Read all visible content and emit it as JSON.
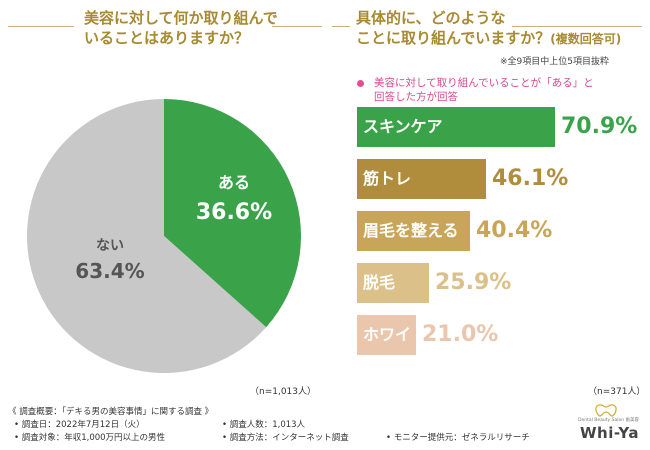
{
  "left": {
    "title_line1": "美容に対して何か取り組んで",
    "title_line2": "いることはありますか？",
    "n_label": "（n=1,013人）"
  },
  "right": {
    "title_line1": "具体的に、どのような",
    "title_line2_main": "ことに取り組んでいますか？",
    "title_line2_sub": "(複数回答可)",
    "note": "※全9項目中上位5項目抜粋",
    "subtitle_line1": "美容に対して取り組んでいることが「ある」と",
    "subtitle_line2": "回答した方が回答",
    "n_label": "（n=371人）"
  },
  "chart_data": [
    {
      "type": "pie",
      "title": "美容に対して何か取り組んでいることはありますか？",
      "slices": [
        {
          "label": "ある",
          "value": 36.6,
          "value_text": "36.6%",
          "color": "#3aa34a"
        },
        {
          "label": "ない",
          "value": 63.4,
          "value_text": "63.4%",
          "color": "#c8c8c8"
        }
      ]
    },
    {
      "type": "bar",
      "orientation": "horizontal",
      "title": "具体的に、どのようなことに取り組んでいますか？(複数回答可)",
      "xlim": [
        0,
        100
      ],
      "categories": [
        "スキンケア",
        "筋トレ",
        "眉毛を整える",
        "脱毛",
        "ホワイトニング"
      ],
      "values": [
        70.9,
        46.1,
        40.4,
        25.9,
        21.0
      ],
      "value_text": [
        "70.9%",
        "46.1%",
        "40.4%",
        "25.9%",
        "21.0%"
      ],
      "colors": [
        "#3aa34a",
        "#b08d3c",
        "#c9a55a",
        "#dcc08a",
        "#e9c6ac"
      ]
    }
  ],
  "footer": {
    "heading": "《 調査概要：「デキる男の美容事情」に関する調査 》",
    "date": "• 調査日：2022年7月12日（火）",
    "count": "• 調査人数：1,013人",
    "target": "• 調査対象：年収1,000万円以上の男性",
    "method": "• 調査方法：インターネット調査",
    "provider": "• モニター提供元：ゼネラルリサーチ"
  },
  "logo": {
    "brand": "Whi-Ya",
    "tagline": "Dental Beauty Salon 歯美容"
  }
}
